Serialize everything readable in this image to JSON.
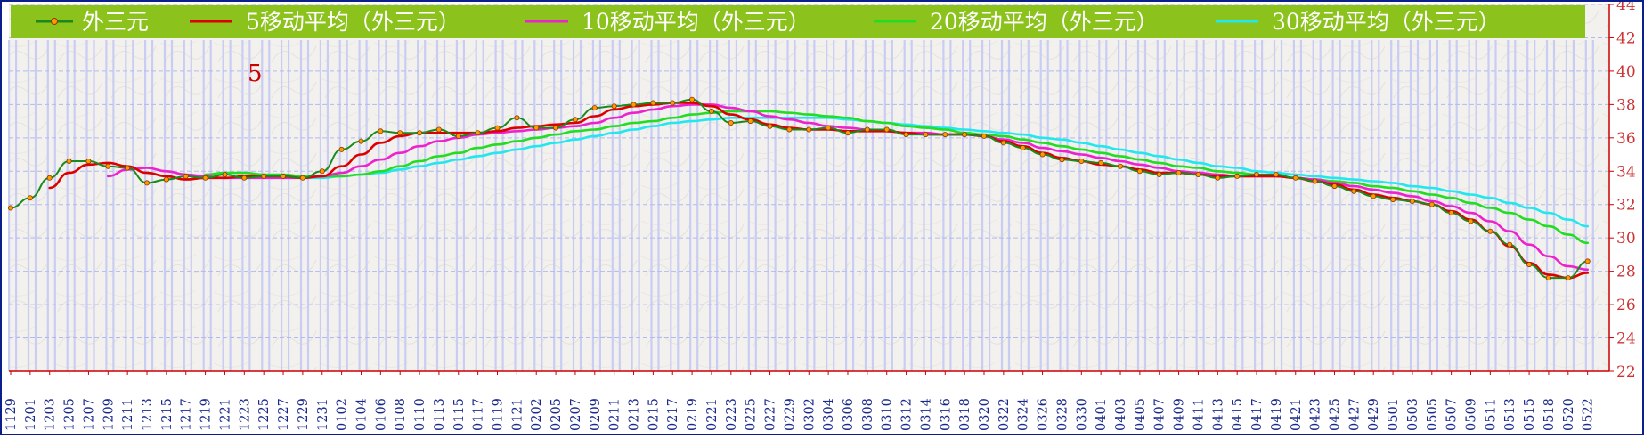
{
  "colors": {
    "legend_bg": "#8cc21c",
    "frame": "#0a1f8c",
    "grid": "#b3b9ee",
    "bar": "#c9cdf4",
    "axis": "#cc0000",
    "ytick_text": "#cc3333",
    "xtick_text": "#1a2a8c",
    "series_main": "#1a8a1a",
    "series_marker": "#ff9a00",
    "ma5": "#dd0000",
    "ma10": "#ee22cc",
    "ma20": "#22dd22",
    "ma30": "#22e8ee",
    "annotation": "#cc0000"
  },
  "chart_data": {
    "type": "line",
    "annotation": "5",
    "ylim": [
      22,
      44
    ],
    "yticks": [
      22,
      24,
      26,
      28,
      30,
      32,
      34,
      36,
      38,
      40,
      42,
      44
    ],
    "grid": true,
    "legend_placement": "top",
    "xlabels": [
      "1129",
      "1201",
      "1203",
      "1205",
      "1207",
      "1209",
      "1211",
      "1213",
      "1215",
      "1217",
      "1219",
      "1221",
      "1223",
      "1225",
      "1227",
      "1229",
      "1231",
      "0102",
      "0104",
      "0106",
      "0108",
      "0110",
      "0113",
      "0115",
      "0117",
      "0119",
      "0121",
      "0202",
      "0205",
      "0207",
      "0209",
      "0211",
      "0213",
      "0215",
      "0217",
      "0219",
      "0221",
      "0223",
      "0225",
      "0227",
      "0229",
      "0302",
      "0304",
      "0306",
      "0308",
      "0310",
      "0312",
      "0314",
      "0316",
      "0318",
      "0320",
      "0322",
      "0324",
      "0326",
      "0328",
      "0330",
      "0401",
      "0403",
      "0405",
      "0407",
      "0409",
      "0411",
      "0413",
      "0415",
      "0417",
      "0419",
      "0421",
      "0423",
      "0425",
      "0427",
      "0429",
      "0501",
      "0503",
      "0505",
      "0507",
      "0509",
      "0511",
      "0513",
      "0515",
      "0518",
      "0520",
      "0522"
    ],
    "series": [
      {
        "name": "外三元",
        "key": "main",
        "values": [
          31.8,
          32.4,
          33.6,
          34.6,
          34.6,
          34.3,
          34.2,
          33.3,
          33.5,
          33.7,
          33.6,
          33.8,
          33.6,
          33.7,
          33.7,
          33.6,
          34.0,
          35.3,
          35.8,
          36.4,
          36.3,
          36.3,
          36.5,
          36.1,
          36.3,
          36.6,
          37.2,
          36.6,
          36.6,
          37.1,
          37.8,
          37.9,
          38.0,
          38.1,
          38.1,
          38.3,
          37.6,
          36.9,
          37.0,
          36.7,
          36.5,
          36.5,
          36.6,
          36.3,
          36.5,
          36.5,
          36.2,
          36.2,
          36.2,
          36.2,
          36.1,
          35.7,
          35.4,
          35.0,
          34.7,
          34.6,
          34.5,
          34.3,
          34.0,
          33.8,
          33.9,
          33.8,
          33.6,
          33.7,
          33.8,
          33.8,
          33.6,
          33.4,
          33.1,
          32.8,
          32.5,
          32.3,
          32.2,
          32.0,
          31.5,
          31.0,
          30.4,
          29.6,
          28.4,
          27.6,
          27.6,
          28.6
        ]
      },
      {
        "name": "5移动平均（外三元）",
        "key": "ma5",
        "values": [
          null,
          null,
          33.0,
          33.9,
          34.4,
          34.5,
          34.3,
          33.9,
          33.7,
          33.5,
          33.6,
          33.6,
          33.7,
          33.7,
          33.7,
          33.6,
          33.7,
          34.3,
          35.0,
          35.7,
          36.1,
          36.3,
          36.3,
          36.3,
          36.3,
          36.4,
          36.6,
          36.7,
          36.8,
          36.9,
          37.3,
          37.7,
          37.9,
          38.0,
          38.1,
          38.1,
          37.9,
          37.4,
          37.1,
          36.8,
          36.6,
          36.5,
          36.5,
          36.4,
          36.4,
          36.4,
          36.3,
          36.2,
          36.2,
          36.2,
          36.1,
          35.8,
          35.5,
          35.1,
          34.8,
          34.6,
          34.4,
          34.3,
          34.1,
          33.9,
          33.9,
          33.8,
          33.7,
          33.7,
          33.7,
          33.7,
          33.6,
          33.4,
          33.2,
          32.9,
          32.6,
          32.4,
          32.2,
          32.0,
          31.6,
          31.1,
          30.4,
          29.5,
          28.5,
          27.8,
          27.6,
          27.9
        ]
      },
      {
        "name": "10移动平均（外三元）",
        "key": "ma10",
        "values": [
          null,
          null,
          null,
          null,
          null,
          33.7,
          34.1,
          34.2,
          34.0,
          33.8,
          33.7,
          33.6,
          33.6,
          33.6,
          33.6,
          33.6,
          33.7,
          33.9,
          34.3,
          34.7,
          35.1,
          35.5,
          35.8,
          36.0,
          36.2,
          36.3,
          36.4,
          36.5,
          36.6,
          36.7,
          36.9,
          37.2,
          37.5,
          37.7,
          37.9,
          38.0,
          38.0,
          37.8,
          37.6,
          37.3,
          37.1,
          36.9,
          36.7,
          36.6,
          36.5,
          36.4,
          36.3,
          36.3,
          36.2,
          36.2,
          36.1,
          35.9,
          35.7,
          35.4,
          35.2,
          35.0,
          34.8,
          34.6,
          34.4,
          34.2,
          34.0,
          33.9,
          33.8,
          33.7,
          33.7,
          33.7,
          33.6,
          33.5,
          33.3,
          33.1,
          32.9,
          32.7,
          32.5,
          32.2,
          31.9,
          31.5,
          31.0,
          30.4,
          29.6,
          28.9,
          28.3,
          28.1
        ]
      },
      {
        "name": "20移动平均（外三元）",
        "key": "ma20",
        "values": [
          null,
          null,
          null,
          null,
          null,
          null,
          null,
          null,
          null,
          null,
          33.8,
          33.9,
          33.9,
          33.8,
          33.8,
          33.7,
          33.7,
          33.7,
          33.8,
          34.0,
          34.3,
          34.6,
          34.9,
          35.1,
          35.4,
          35.6,
          35.8,
          36.0,
          36.2,
          36.4,
          36.5,
          36.7,
          36.9,
          37.0,
          37.2,
          37.4,
          37.5,
          37.6,
          37.6,
          37.6,
          37.5,
          37.4,
          37.3,
          37.2,
          37.0,
          36.9,
          36.7,
          36.6,
          36.5,
          36.3,
          36.2,
          36.1,
          35.9,
          35.7,
          35.5,
          35.3,
          35.1,
          34.9,
          34.7,
          34.5,
          34.3,
          34.2,
          34.0,
          33.9,
          33.8,
          33.7,
          33.6,
          33.5,
          33.4,
          33.3,
          33.1,
          33.0,
          32.8,
          32.6,
          32.4,
          32.1,
          31.8,
          31.5,
          31.1,
          30.7,
          30.2,
          29.7
        ]
      },
      {
        "name": "30移动平均（外三元）",
        "key": "ma30",
        "values": [
          null,
          null,
          null,
          null,
          null,
          null,
          null,
          null,
          null,
          null,
          null,
          null,
          null,
          null,
          null,
          33.6,
          33.6,
          33.7,
          33.8,
          33.9,
          34.1,
          34.3,
          34.5,
          34.7,
          34.9,
          35.1,
          35.3,
          35.5,
          35.7,
          35.9,
          36.1,
          36.3,
          36.5,
          36.7,
          36.9,
          37.0,
          37.1,
          37.2,
          37.2,
          37.2,
          37.2,
          37.2,
          37.2,
          37.1,
          37.0,
          36.9,
          36.8,
          36.7,
          36.6,
          36.5,
          36.4,
          36.3,
          36.2,
          36.0,
          35.9,
          35.7,
          35.5,
          35.3,
          35.1,
          34.9,
          34.7,
          34.5,
          34.3,
          34.2,
          34.0,
          33.9,
          33.8,
          33.7,
          33.6,
          33.5,
          33.4,
          33.3,
          33.1,
          33.0,
          32.8,
          32.6,
          32.4,
          32.1,
          31.8,
          31.5,
          31.1,
          30.7
        ]
      }
    ]
  }
}
